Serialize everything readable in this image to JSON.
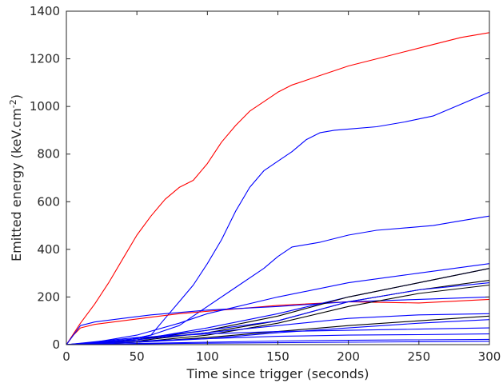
{
  "chart_data": {
    "type": "line",
    "title": "",
    "xlabel": "Time since trigger (seconds)",
    "ylabel": "Emitted energy (keV.cm",
    "ylabel_superscript": "-2",
    "ylabel_suffix": ")",
    "xlim": [
      0,
      300
    ],
    "ylim": [
      0,
      1400
    ],
    "x_ticks": [
      0,
      50,
      100,
      150,
      200,
      250,
      300
    ],
    "y_ticks": [
      0,
      200,
      400,
      600,
      800,
      1000,
      1200,
      1400
    ],
    "x_tick_labels": [
      "0",
      "50",
      "100",
      "150",
      "200",
      "250",
      "300"
    ],
    "y_tick_labels": [
      "0",
      "200",
      "400",
      "600",
      "800",
      "1000",
      "1200",
      "1400"
    ],
    "grid": false,
    "legend": "none",
    "colors": {
      "red": "#ff0000",
      "blue": "#0000ff",
      "black": "#000000",
      "axis": "#262626"
    },
    "series": [
      {
        "color": "#ff0000",
        "x": [
          0,
          10,
          20,
          30,
          40,
          50,
          60,
          70,
          80,
          90,
          100,
          110,
          120,
          130,
          140,
          150,
          160,
          170,
          180,
          190,
          200,
          220,
          240,
          260,
          280,
          300
        ],
        "y": [
          0,
          90,
          170,
          260,
          360,
          460,
          540,
          610,
          660,
          690,
          760,
          850,
          920,
          980,
          1020,
          1060,
          1090,
          1110,
          1130,
          1150,
          1170,
          1200,
          1230,
          1260,
          1290,
          1310
        ]
      },
      {
        "color": "#0000ff",
        "x": [
          0,
          20,
          40,
          60,
          70,
          80,
          90,
          100,
          110,
          120,
          130,
          140,
          150,
          160,
          170,
          180,
          190,
          200,
          220,
          240,
          260,
          280,
          300
        ],
        "y": [
          0,
          5,
          15,
          40,
          110,
          180,
          250,
          340,
          440,
          560,
          660,
          730,
          770,
          810,
          860,
          890,
          900,
          905,
          915,
          935,
          960,
          1010,
          1060
        ]
      },
      {
        "color": "#0000ff",
        "x": [
          0,
          40,
          60,
          80,
          100,
          120,
          140,
          150,
          160,
          170,
          180,
          200,
          220,
          240,
          260,
          280,
          300
        ],
        "y": [
          0,
          15,
          40,
          80,
          160,
          240,
          320,
          370,
          410,
          420,
          430,
          460,
          480,
          490,
          500,
          520,
          540
        ]
      },
      {
        "color": "#ff0000",
        "x": [
          0,
          5,
          10,
          20,
          40,
          60,
          80,
          100,
          150,
          200,
          250,
          300
        ],
        "y": [
          0,
          40,
          70,
          85,
          100,
          115,
          130,
          140,
          165,
          180,
          175,
          190
        ]
      },
      {
        "color": "#0000ff",
        "x": [
          0,
          10,
          20,
          40,
          60,
          80,
          100,
          150,
          200,
          250,
          300
        ],
        "y": [
          0,
          80,
          95,
          110,
          125,
          135,
          145,
          160,
          180,
          190,
          200
        ]
      },
      {
        "color": "#0000ff",
        "x": [
          0,
          20,
          50,
          80,
          100,
          150,
          200,
          250,
          300
        ],
        "y": [
          0,
          10,
          40,
          90,
          130,
          200,
          260,
          300,
          340
        ]
      },
      {
        "color": "#0000ff",
        "x": [
          0,
          20,
          50,
          80,
          100,
          150,
          200,
          250,
          300
        ],
        "y": [
          0,
          5,
          20,
          50,
          70,
          130,
          200,
          260,
          320
        ]
      },
      {
        "color": "#000000",
        "x": [
          0,
          50,
          100,
          150,
          200,
          250,
          300
        ],
        "y": [
          0,
          20,
          60,
          120,
          200,
          260,
          320
        ]
      },
      {
        "color": "#000000",
        "x": [
          0,
          50,
          100,
          150,
          200,
          250,
          300
        ],
        "y": [
          0,
          15,
          50,
          100,
          180,
          230,
          270
        ]
      },
      {
        "color": "#000000",
        "x": [
          0,
          50,
          100,
          150,
          200,
          250,
          300
        ],
        "y": [
          0,
          10,
          40,
          90,
          160,
          215,
          250
        ]
      },
      {
        "color": "#0000ff",
        "x": [
          0,
          50,
          100,
          150,
          200,
          250,
          300
        ],
        "y": [
          0,
          25,
          60,
          100,
          180,
          230,
          260
        ]
      },
      {
        "color": "#0000ff",
        "x": [
          0,
          50,
          100,
          150,
          200,
          250,
          300
        ],
        "y": [
          0,
          20,
          50,
          80,
          110,
          125,
          130
        ]
      },
      {
        "color": "#000000",
        "x": [
          0,
          50,
          100,
          150,
          200,
          250,
          300
        ],
        "y": [
          0,
          10,
          30,
          55,
          80,
          100,
          120
        ]
      },
      {
        "color": "#0000ff",
        "x": [
          0,
          50,
          100,
          150,
          200,
          250,
          300
        ],
        "y": [
          0,
          10,
          25,
          50,
          70,
          90,
          105
        ]
      },
      {
        "color": "#0000ff",
        "x": [
          0,
          50,
          100,
          150,
          200,
          250,
          300
        ],
        "y": [
          0,
          30,
          45,
          55,
          60,
          65,
          70
        ]
      },
      {
        "color": "#0000ff",
        "x": [
          0,
          50,
          100,
          150,
          200,
          250,
          300
        ],
        "y": [
          0,
          15,
          25,
          35,
          40,
          42,
          45
        ]
      },
      {
        "color": "#0000ff",
        "x": [
          0,
          50,
          100,
          150,
          200,
          250,
          300
        ],
        "y": [
          0,
          5,
          10,
          15,
          18,
          20,
          22
        ]
      },
      {
        "color": "#0000ff",
        "x": [
          0,
          50,
          100,
          150,
          200,
          250,
          300
        ],
        "y": [
          0,
          3,
          6,
          8,
          10,
          12,
          14
        ]
      }
    ]
  }
}
